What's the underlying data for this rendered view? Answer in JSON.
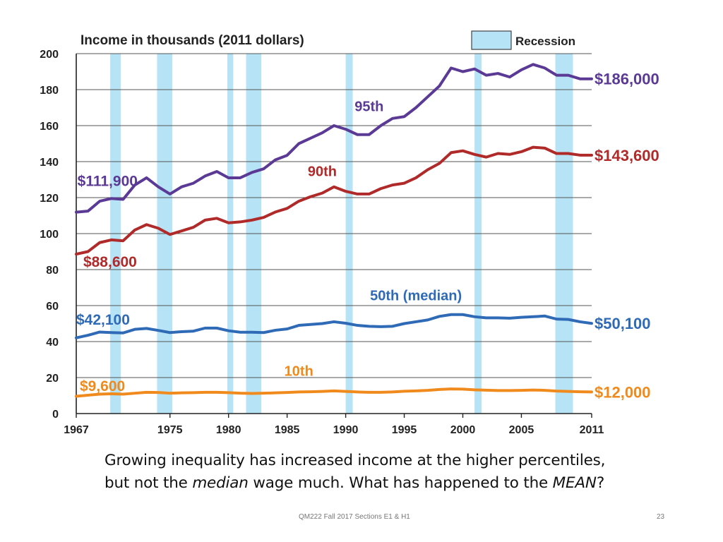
{
  "chart_data": {
    "type": "line",
    "title": "Income in thousands (2011 dollars)",
    "xlabel": "",
    "ylabel": "",
    "xlim": [
      1967,
      2011
    ],
    "ylim": [
      0,
      200
    ],
    "x_ticks": [
      1967,
      1975,
      1980,
      1985,
      1990,
      1995,
      2000,
      2005,
      2011
    ],
    "y_ticks": [
      0,
      20,
      40,
      60,
      80,
      100,
      120,
      140,
      160,
      180,
      200
    ],
    "grid": "horizontal",
    "legend": {
      "label": "Recession",
      "position": "top-right",
      "color": "#b6e3f5"
    },
    "recessions": [
      [
        1969.9,
        1970.8
      ],
      [
        1973.9,
        1975.2
      ],
      [
        1979.9,
        1980.4
      ],
      [
        1981.5,
        1982.8
      ],
      [
        1990.0,
        1990.6
      ],
      [
        2001.0,
        2001.6
      ],
      [
        2007.9,
        2009.4
      ]
    ],
    "x": [
      1967,
      1968,
      1969,
      1970,
      1971,
      1972,
      1973,
      1974,
      1975,
      1976,
      1977,
      1978,
      1979,
      1980,
      1981,
      1982,
      1983,
      1984,
      1985,
      1986,
      1987,
      1988,
      1989,
      1990,
      1991,
      1992,
      1993,
      1994,
      1995,
      1996,
      1997,
      1998,
      1999,
      2000,
      2001,
      2002,
      2003,
      2004,
      2005,
      2006,
      2007,
      2008,
      2009,
      2010,
      2011
    ],
    "series": [
      {
        "name": "95th",
        "color": "#5b3a96",
        "start_label": "$111,900",
        "end_label": "$186,000",
        "values": [
          111.9,
          112.5,
          118,
          119.5,
          119,
          127,
          131,
          126,
          122,
          126,
          128,
          132,
          134.5,
          131,
          131,
          134,
          136,
          141,
          143.5,
          150,
          153,
          156,
          160,
          158,
          155,
          155,
          160,
          164,
          165,
          170,
          176,
          182,
          192,
          190,
          191.5,
          188,
          189,
          187,
          191,
          194,
          192,
          188,
          188,
          186,
          186
        ]
      },
      {
        "name": "90th",
        "color": "#b02a2a",
        "start_label": "$88,600",
        "end_label": "$143,600",
        "values": [
          88.6,
          90,
          95,
          96.5,
          96,
          102,
          105,
          103,
          99.5,
          101.5,
          103.5,
          107.5,
          108.5,
          106,
          106.5,
          107.5,
          109,
          112,
          114,
          118,
          120.5,
          122.5,
          126,
          123.5,
          122,
          122,
          125,
          127,
          128,
          131,
          135.5,
          139,
          145,
          146,
          144,
          142.5,
          144.5,
          144,
          145.5,
          148,
          147.5,
          144.5,
          144.5,
          143.6,
          143.6
        ]
      },
      {
        "name": "50th (median)",
        "color": "#2f6ab6",
        "start_label": "$42,100",
        "end_label": "$50,100",
        "values": [
          42.1,
          43.5,
          45.3,
          45,
          44.8,
          46.8,
          47.3,
          46.2,
          45,
          45.5,
          45.8,
          47.5,
          47.5,
          46,
          45.2,
          45.2,
          45,
          46.3,
          47,
          49,
          49.5,
          50,
          51,
          50.2,
          49,
          48.5,
          48.3,
          48.5,
          50,
          51,
          52,
          54,
          55,
          55,
          53.8,
          53.2,
          53.2,
          53,
          53.5,
          53.8,
          54.2,
          52.5,
          52.3,
          51,
          50.1
        ]
      },
      {
        "name": "10th",
        "color": "#f08a1c",
        "start_label": "$9,600",
        "end_label": "$12,000",
        "values": [
          9.6,
          10.2,
          10.8,
          11,
          10.8,
          11.3,
          11.8,
          11.7,
          11.3,
          11.5,
          11.6,
          11.8,
          11.8,
          11.6,
          11.3,
          11.2,
          11.3,
          11.5,
          11.7,
          12,
          12.1,
          12.3,
          12.6,
          12.3,
          12,
          11.8,
          11.8,
          12,
          12.4,
          12.6,
          12.9,
          13.4,
          13.7,
          13.6,
          13.2,
          13,
          12.8,
          12.8,
          12.9,
          13.1,
          12.9,
          12.5,
          12.3,
          12.1,
          12.0
        ]
      }
    ]
  },
  "caption": {
    "line1": "Growing inequality has increased income at the higher percentiles,",
    "line2_a": "but not the ",
    "line2_em1": "median",
    "line2_b": " wage much.  What has happened to the ",
    "line2_em2": "MEAN",
    "line2_c": "?"
  },
  "footer": {
    "text": "QM222 Fall 2017 Sections E1 & H1",
    "page_number": "23"
  }
}
